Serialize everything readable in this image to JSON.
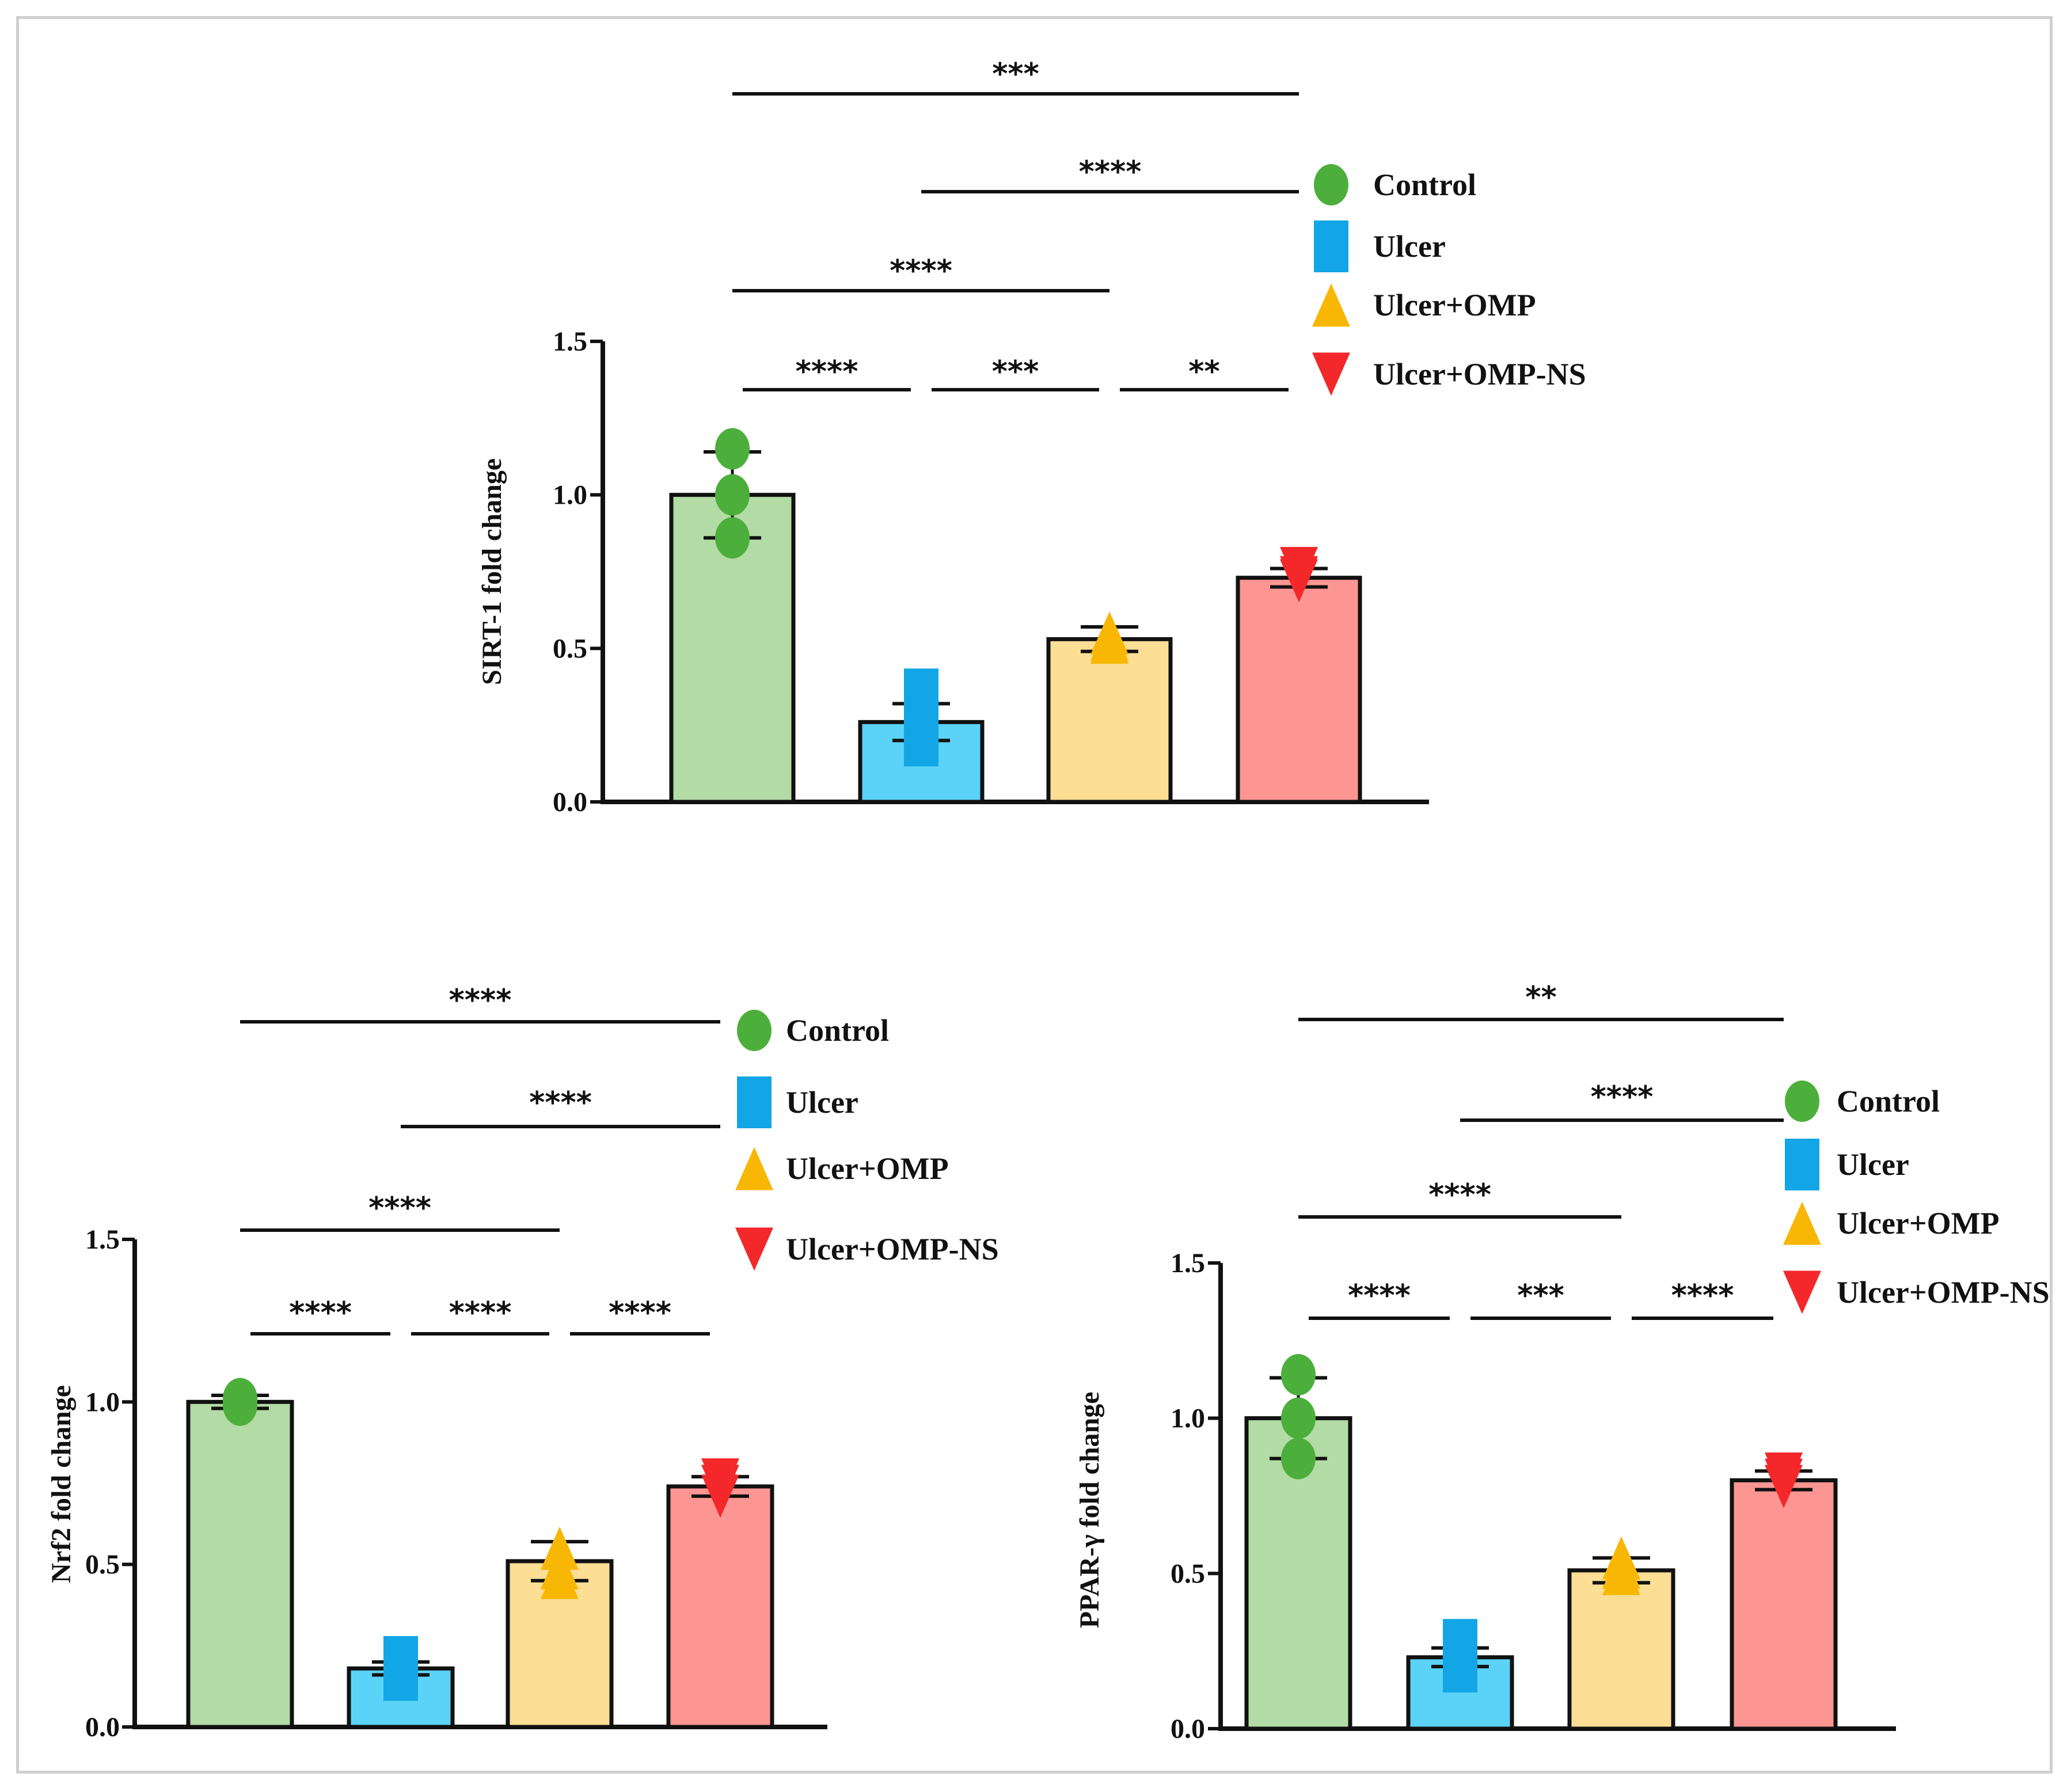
{
  "colors": {
    "control_fill": "#b3dba5",
    "ulcer_fill": "#5bd3f8",
    "omp_fill": "#fcde94",
    "ns_fill": "#fd9692",
    "control_marker": "#4caf3c",
    "ulcer_marker": "#13a6e6",
    "omp_marker": "#f8b704",
    "ns_marker": "#f4272a"
  },
  "legend": [
    {
      "label": "Control",
      "shape": "circle",
      "color": "#4caf3c"
    },
    {
      "label": "Ulcer",
      "shape": "square",
      "color": "#13a6e6"
    },
    {
      "label": "Ulcer+OMP",
      "shape": "triangle-up",
      "color": "#f8b704"
    },
    {
      "label": "Ulcer+OMP-NS",
      "shape": "triangle-down",
      "color": "#f4272a"
    }
  ],
  "chart_data": [
    {
      "type": "bar",
      "ylabel": "SIRT-1 fold change",
      "ylim": [
        0,
        1.5
      ],
      "yticks": [
        "0.0",
        "0.5",
        "1.0",
        "1.5"
      ],
      "categories": [
        "Control",
        "Ulcer",
        "Ulcer+OMP",
        "Ulcer+OMP-NS"
      ],
      "values": [
        1.0,
        0.26,
        0.53,
        0.73
      ],
      "error": [
        0.14,
        0.06,
        0.04,
        0.03
      ],
      "points": [
        [
          1.15,
          1.0,
          0.86
        ],
        [
          0.35,
          0.28,
          0.2
        ],
        [
          0.55,
          0.53,
          0.52
        ],
        [
          0.76,
          0.73,
          0.72
        ]
      ],
      "significance": [
        {
          "from": 0,
          "to": 1,
          "label": "****"
        },
        {
          "from": 1,
          "to": 2,
          "label": "***"
        },
        {
          "from": 2,
          "to": 3,
          "label": "**"
        },
        {
          "from": 0,
          "to": 2,
          "label": "****"
        },
        {
          "from": 1,
          "to": 3,
          "label": "****"
        },
        {
          "from": 0,
          "to": 3,
          "label": "***"
        }
      ]
    },
    {
      "type": "bar",
      "ylabel": "Nrf2 fold change",
      "ylim": [
        0,
        1.5
      ],
      "yticks": [
        "0.0",
        "0.5",
        "1.0",
        "1.5"
      ],
      "categories": [
        "Control",
        "Ulcer",
        "Ulcer+OMP",
        "Ulcer+OMP-NS"
      ],
      "values": [
        1.0,
        0.18,
        0.51,
        0.74
      ],
      "error": [
        0.02,
        0.02,
        0.06,
        0.03
      ],
      "points": [
        [
          1.01,
          1.0,
          0.99
        ],
        [
          0.2,
          0.18,
          0.16
        ],
        [
          0.55,
          0.49,
          0.46
        ],
        [
          0.76,
          0.74,
          0.71
        ]
      ],
      "significance": [
        {
          "from": 0,
          "to": 1,
          "label": "****"
        },
        {
          "from": 1,
          "to": 2,
          "label": "****"
        },
        {
          "from": 2,
          "to": 3,
          "label": "****"
        },
        {
          "from": 0,
          "to": 2,
          "label": "****"
        },
        {
          "from": 1,
          "to": 3,
          "label": "****"
        },
        {
          "from": 0,
          "to": 3,
          "label": "****"
        }
      ]
    },
    {
      "type": "bar",
      "ylabel": "PPAR-γ fold change",
      "ylim": [
        0,
        1.5
      ],
      "yticks": [
        "0.0",
        "0.5",
        "1.0",
        "1.5"
      ],
      "categories": [
        "Control",
        "Ulcer",
        "Ulcer+OMP",
        "Ulcer+OMP-NS"
      ],
      "values": [
        1.0,
        0.23,
        0.51,
        0.8
      ],
      "error": [
        0.13,
        0.03,
        0.04,
        0.03
      ],
      "points": [
        [
          1.14,
          1.0,
          0.87
        ],
        [
          0.27,
          0.24,
          0.2
        ],
        [
          0.55,
          0.52,
          0.5
        ],
        [
          0.82,
          0.8,
          0.78
        ]
      ],
      "significance": [
        {
          "from": 0,
          "to": 1,
          "label": "****"
        },
        {
          "from": 1,
          "to": 2,
          "label": "***"
        },
        {
          "from": 2,
          "to": 3,
          "label": "****"
        },
        {
          "from": 0,
          "to": 2,
          "label": "****"
        },
        {
          "from": 1,
          "to": 3,
          "label": "****"
        },
        {
          "from": 0,
          "to": 3,
          "label": "**"
        }
      ]
    }
  ]
}
